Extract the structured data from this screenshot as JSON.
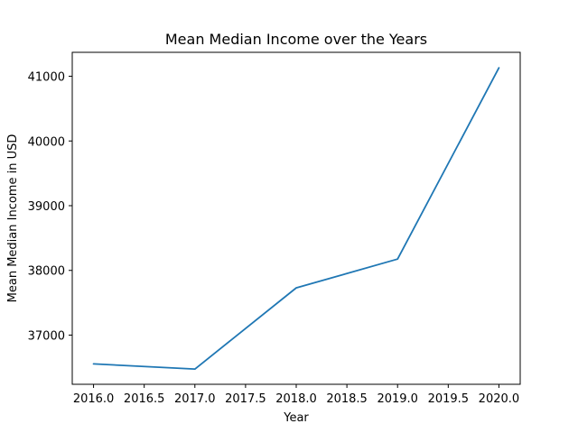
{
  "chart_data": {
    "type": "line",
    "title": "Mean Median Income over the Years",
    "xlabel": "Year",
    "ylabel": "Mean Median Income in USD",
    "x": [
      2016,
      2017,
      2018,
      2019,
      2020
    ],
    "series": [
      {
        "values": [
          36555,
          36475,
          37730,
          38175,
          41130
        ],
        "color": "#1f77b4"
      }
    ],
    "xlim": [
      2015.79,
      2020.21
    ],
    "ylim": [
      36240,
      41370
    ],
    "xticks": [
      2016.0,
      2016.5,
      2017.0,
      2017.5,
      2018.0,
      2018.5,
      2019.0,
      2019.5,
      2020.0
    ],
    "xtick_labels": [
      "2016.0",
      "2016.5",
      "2017.0",
      "2017.5",
      "2018.0",
      "2018.5",
      "2019.0",
      "2019.5",
      "2020.0"
    ],
    "yticks": [
      37000,
      38000,
      39000,
      40000,
      41000
    ],
    "ytick_labels": [
      "37000",
      "38000",
      "39000",
      "40000",
      "41000"
    ],
    "grid": false,
    "legend": "none"
  }
}
